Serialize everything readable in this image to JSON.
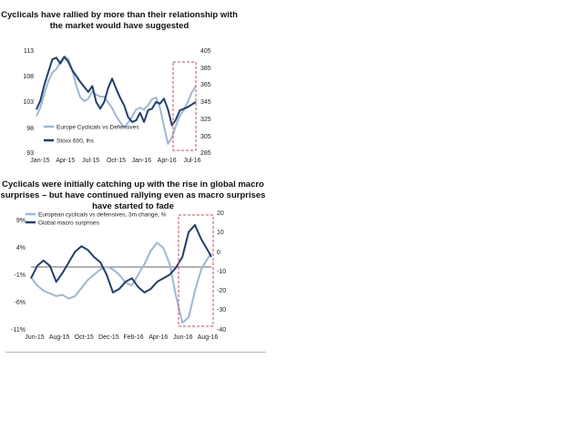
{
  "colors": {
    "light": "#9cb8d6",
    "dark": "#1f3f72",
    "highlight": "#e0464d",
    "zero_line": "#333333"
  },
  "chart_data": [
    {
      "type": "line",
      "title": "Cyclicals have rallied by more than their relationship with the market would have suggested",
      "x_labels": [
        "Jan-15",
        "Apr-15",
        "Jul-15",
        "Oct-15",
        "Jan-16",
        "Apr-16",
        "Jul-16"
      ],
      "x_range": [
        0,
        20
      ],
      "y_left": {
        "ticks": [
          "93",
          "98",
          "103",
          "108",
          "113"
        ],
        "range": [
          93,
          113
        ]
      },
      "y_right": {
        "ticks": [
          "285",
          "305",
          "325",
          "345",
          "365",
          "385",
          "405"
        ],
        "range": [
          285,
          405
        ]
      },
      "series": [
        {
          "name": "Europe Cyclicals vs Defensives",
          "axis": "left",
          "color": "light",
          "x": [
            0,
            0.5,
            1,
            1.5,
            2,
            2.5,
            3,
            3.5,
            4,
            4.5,
            5,
            5.5,
            6,
            6.5,
            7,
            7.5,
            8,
            8.5,
            9,
            9.5,
            10,
            10.5,
            11,
            11.5,
            12,
            12.5,
            13,
            13.5,
            14,
            14.5,
            15,
            15.5,
            16,
            16.5,
            17,
            17.5,
            18,
            18.5,
            19,
            19.5,
            20
          ],
          "values": [
            100.0,
            101.8,
            104.6,
            107.0,
            108.7,
            109.4,
            110.9,
            111.9,
            111.4,
            109.1,
            106.0,
            103.8,
            103.0,
            103.5,
            104.9,
            104.3,
            103.9,
            103.9,
            102.7,
            101.6,
            100.0,
            98.8,
            97.7,
            98.7,
            99.9,
            101.3,
            101.7,
            101.3,
            102.2,
            103.4,
            103.7,
            101.7,
            98.0,
            94.5,
            95.8,
            98.1,
            100.1,
            101.3,
            102.9,
            104.8,
            106.0
          ]
        },
        {
          "name": "Stoxx 600, lhs",
          "axis": "right",
          "color": "dark",
          "x": [
            0,
            0.5,
            1,
            1.5,
            2,
            2.5,
            3,
            3.5,
            4,
            4.5,
            5,
            5.5,
            6,
            6.5,
            7,
            7.5,
            8,
            8.5,
            9,
            9.5,
            10,
            10.5,
            11,
            11.5,
            12,
            12.5,
            13,
            13.5,
            14,
            14.5,
            15,
            15.5,
            16,
            16.5,
            17,
            17.5,
            18,
            18.5,
            19,
            19.5,
            20
          ],
          "values": [
            335,
            346,
            365,
            380,
            395,
            397,
            390,
            398,
            392,
            382,
            375,
            368,
            362,
            356,
            363,
            344,
            336,
            344,
            361,
            372,
            360,
            349,
            340,
            326,
            320,
            322,
            331,
            320,
            334,
            336,
            344,
            342,
            348,
            335,
            316,
            323,
            334,
            336,
            338,
            341,
            344
          ]
        }
      ]
    },
    {
      "type": "line",
      "title": "Cyclicals were initially catching up with the rise in global macro surprises – but have continued rallying even as macro surprises have started to fade",
      "x_labels": [
        "Jun-15",
        "Aug-15",
        "Oct-15",
        "Dec-15",
        "Feb-16",
        "Apr-16",
        "Jun-16",
        "Aug-16"
      ],
      "x_range": [
        0,
        14.3
      ],
      "y_left": {
        "ticks": [
          "-11%",
          "-6%",
          "-1%",
          "4%",
          "9%"
        ],
        "range": [
          -11,
          9
        ]
      },
      "y_right": {
        "ticks": [
          "-40",
          "-30",
          "-20",
          "-10",
          "0",
          "10",
          "20"
        ],
        "range": [
          -40,
          20
        ]
      },
      "zero_line": 0,
      "series": [
        {
          "name": "European cyclicals vs defensives, 3m change, %",
          "axis": "left",
          "color": "light",
          "x": [
            0,
            0.5,
            1,
            1.5,
            2,
            2.5,
            3,
            3.5,
            4,
            4.5,
            5,
            5.5,
            6,
            6.5,
            7,
            7.5,
            8,
            8.5,
            9,
            9.5,
            10,
            10.5,
            11,
            11.5,
            12,
            12.5,
            13,
            13.5,
            14,
            14.3
          ],
          "values": [
            -1.5,
            -3.0,
            -4.0,
            -4.5,
            -5.0,
            -4.8,
            -5.5,
            -5.0,
            -3.5,
            -2.0,
            -1.0,
            0.0,
            0.5,
            0.0,
            -1.0,
            -2.5,
            -3.0,
            -1.0,
            1.0,
            3.5,
            5.0,
            4.0,
            1.0,
            -5.0,
            -10.0,
            -9.0,
            -4.0,
            0.0,
            2.0,
            3.0
          ]
        },
        {
          "name": "Global macro surprises",
          "axis": "right",
          "color": "dark",
          "x": [
            0,
            0.5,
            1,
            1.5,
            2,
            2.5,
            3,
            3.5,
            4,
            4.5,
            5,
            5.5,
            6,
            6.5,
            7,
            7.5,
            8,
            8.5,
            9,
            9.5,
            10,
            10.5,
            11,
            11.5,
            12,
            12.5,
            13,
            13.5,
            14,
            14.3
          ],
          "values": [
            -12.0,
            -5.0,
            -2.0,
            -5.0,
            -14.0,
            -9.0,
            -3.0,
            3.0,
            6.0,
            4.0,
            0.0,
            -3.0,
            -10.0,
            -20.0,
            -18.0,
            -14.0,
            -12.0,
            -17.0,
            -20.0,
            -18.0,
            -14.0,
            -12.0,
            -10.0,
            -6.0,
            0.0,
            14.0,
            18.0,
            10.0,
            4.0,
            0.0
          ]
        }
      ]
    }
  ]
}
